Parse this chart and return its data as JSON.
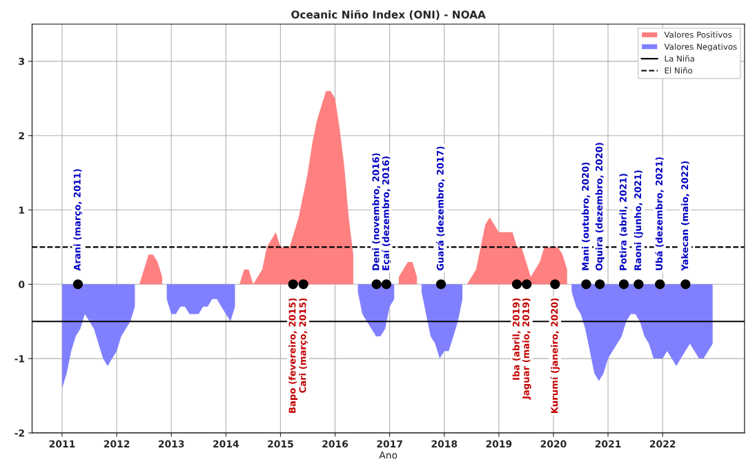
{
  "chart_data": {
    "type": "area",
    "title": "Oceanic Niño Index (ONI) - NOAA",
    "xlabel": "Ano",
    "x": [
      2011.0,
      2011.0833,
      2011.1667,
      2011.25,
      2011.3333,
      2011.4167,
      2011.5,
      2011.5833,
      2011.6667,
      2011.75,
      2011.8333,
      2011.9167,
      2012.0,
      2012.0833,
      2012.1667,
      2012.25,
      2012.3333,
      2012.4167,
      2012.5,
      2012.5833,
      2012.6667,
      2012.75,
      2012.8333,
      2012.9167,
      2013.0,
      2013.0833,
      2013.1667,
      2013.25,
      2013.3333,
      2013.4167,
      2013.5,
      2013.5833,
      2013.6667,
      2013.75,
      2013.8333,
      2013.9167,
      2014.0,
      2014.0833,
      2014.1667,
      2014.25,
      2014.3333,
      2014.4167,
      2014.5,
      2014.5833,
      2014.6667,
      2014.75,
      2014.8333,
      2014.9167,
      2015.0,
      2015.0833,
      2015.1667,
      2015.25,
      2015.3333,
      2015.4167,
      2015.5,
      2015.5833,
      2015.6667,
      2015.75,
      2015.8333,
      2015.9167,
      2016.0,
      2016.0833,
      2016.1667,
      2016.25,
      2016.3333,
      2016.4167,
      2016.5,
      2016.5833,
      2016.6667,
      2016.75,
      2016.8333,
      2016.9167,
      2017.0,
      2017.0833,
      2017.1667,
      2017.25,
      2017.3333,
      2017.4167,
      2017.5,
      2017.5833,
      2017.6667,
      2017.75,
      2017.8333,
      2017.9167,
      2018.0,
      2018.0833,
      2018.1667,
      2018.25,
      2018.3333,
      2018.4167,
      2018.5,
      2018.5833,
      2018.6667,
      2018.75,
      2018.8333,
      2018.9167,
      2019.0,
      2019.0833,
      2019.1667,
      2019.25,
      2019.3333,
      2019.4167,
      2019.5,
      2019.5833,
      2019.6667,
      2019.75,
      2019.8333,
      2019.9167,
      2020.0,
      2020.0833,
      2020.1667,
      2020.25,
      2020.3333,
      2020.4167,
      2020.5,
      2020.5833,
      2020.6667,
      2020.75,
      2020.8333,
      2020.9167,
      2021.0,
      2021.0833,
      2021.1667,
      2021.25,
      2021.3333,
      2021.4167,
      2021.5,
      2021.5833,
      2021.6667,
      2021.75,
      2021.8333,
      2021.9167,
      2022.0,
      2022.0833,
      2022.1667,
      2022.25,
      2022.3333,
      2022.4167,
      2022.5,
      2022.5833,
      2022.6667,
      2022.75,
      2022.8333,
      2022.9167
    ],
    "series": [
      {
        "name": "Valores Positivos",
        "color": "#ff8080",
        "values": [
          null,
          null,
          null,
          null,
          null,
          null,
          null,
          null,
          null,
          null,
          null,
          null,
          null,
          null,
          null,
          null,
          null,
          0.0,
          0.2,
          0.4,
          0.4,
          0.3,
          0.1,
          null,
          null,
          null,
          null,
          null,
          null,
          null,
          null,
          null,
          null,
          null,
          null,
          null,
          null,
          null,
          null,
          0.0,
          0.2,
          0.2,
          0.0,
          0.1,
          0.2,
          0.5,
          0.6,
          0.7,
          0.5,
          0.5,
          0.5,
          0.7,
          0.9,
          1.2,
          1.5,
          1.9,
          2.2,
          2.4,
          2.6,
          2.6,
          2.5,
          2.1,
          1.6,
          0.9,
          0.4,
          null,
          null,
          null,
          null,
          null,
          null,
          null,
          null,
          null,
          0.1,
          0.2,
          0.3,
          0.3,
          0.1,
          null,
          null,
          null,
          null,
          null,
          null,
          null,
          null,
          null,
          null,
          0.0,
          0.1,
          0.2,
          0.5,
          0.8,
          0.9,
          0.8,
          0.7,
          0.7,
          0.7,
          0.7,
          0.5,
          0.5,
          0.3,
          0.1,
          0.2,
          0.3,
          0.5,
          0.5,
          0.5,
          0.5,
          0.4,
          0.2,
          null,
          null,
          null,
          null,
          null,
          null,
          null,
          null,
          null,
          null,
          null,
          null,
          null,
          null,
          null,
          null,
          null,
          null,
          null,
          null,
          null,
          null,
          null,
          null,
          null,
          null,
          null,
          null,
          null,
          null,
          null,
          null
        ]
      },
      {
        "name": "Valores Negativos",
        "color": "#8080ff",
        "values": [
          -1.4,
          -1.2,
          -0.9,
          -0.7,
          -0.6,
          -0.4,
          -0.5,
          -0.6,
          -0.8,
          -1.0,
          -1.1,
          -1.0,
          -0.9,
          -0.7,
          -0.6,
          -0.5,
          -0.3,
          null,
          null,
          null,
          null,
          null,
          null,
          -0.2,
          -0.4,
          -0.4,
          -0.3,
          -0.3,
          -0.4,
          -0.4,
          -0.4,
          -0.3,
          -0.3,
          -0.2,
          -0.2,
          -0.3,
          -0.4,
          -0.5,
          -0.3,
          null,
          null,
          null,
          null,
          null,
          null,
          null,
          null,
          null,
          null,
          null,
          null,
          null,
          null,
          null,
          null,
          null,
          null,
          null,
          null,
          null,
          null,
          null,
          null,
          null,
          null,
          -0.1,
          -0.4,
          -0.5,
          -0.6,
          -0.7,
          -0.7,
          -0.6,
          -0.3,
          -0.2,
          null,
          null,
          null,
          null,
          null,
          -0.1,
          -0.4,
          -0.7,
          -0.8,
          -1.0,
          -0.9,
          -0.9,
          -0.7,
          -0.5,
          -0.2,
          null,
          null,
          null,
          null,
          null,
          null,
          null,
          null,
          null,
          null,
          null,
          null,
          null,
          null,
          null,
          null,
          null,
          null,
          null,
          null,
          null,
          null,
          null,
          -0.1,
          -0.3,
          -0.4,
          -0.6,
          -0.9,
          -1.2,
          -1.3,
          -1.2,
          -1.0,
          -0.9,
          -0.8,
          -0.7,
          -0.5,
          -0.4,
          -0.4,
          -0.5,
          -0.7,
          -0.8,
          -1.0,
          -1.0,
          -1.0,
          -0.9,
          -1.0,
          -1.1,
          -1.0,
          -0.9,
          -0.8,
          -0.9,
          -1.0,
          -1.0,
          -0.9,
          -0.8
        ]
      },
      {
        "type": "scatter",
        "color": "#000000",
        "marker": "circle",
        "x": [
          2011.29,
          2015.23,
          2015.42,
          2016.76,
          2016.94,
          2017.94,
          2019.33,
          2019.51,
          2020.03,
          2020.6,
          2020.85,
          2021.29,
          2021.56,
          2021.95,
          2022.42
        ],
        "values": [
          0,
          0,
          0,
          0,
          0,
          0,
          0,
          0,
          0,
          0,
          0,
          0,
          0,
          0,
          0
        ]
      }
    ],
    "ref_lines": [
      {
        "axis": "y",
        "value": -0.5,
        "label": "La Niña",
        "color": "#000000",
        "line_style": "solid"
      },
      {
        "axis": "y",
        "value": 0.5,
        "label": "El Niño",
        "color": "#000000",
        "line_style": "dashed"
      }
    ],
    "annotations": [
      {
        "text": "Arani (março, 2011)",
        "x": 2011.29,
        "y": 0
      },
      {
        "text": "Bapo (fevereiro, 2015)",
        "x": 2015.23,
        "y": 0
      },
      {
        "text": "Cari (março, 2015)",
        "x": 2015.42,
        "y": 0
      },
      {
        "text": "Deni (novembro, 2016)",
        "x": 2016.76,
        "y": 0
      },
      {
        "text": "Eçaí (dezembro, 2016)",
        "x": 2016.94,
        "y": 0
      },
      {
        "text": "Guará (dezembro, 2017)",
        "x": 2017.94,
        "y": 0
      },
      {
        "text": "Iba (abril, 2019)",
        "x": 2019.33,
        "y": 0
      },
      {
        "text": "Jaguar (maio, 2019)",
        "x": 2019.51,
        "y": 0
      },
      {
        "text": "Kurumí (janeiro, 2020)",
        "x": 2020.03,
        "y": 0
      },
      {
        "text": "Mani (outubro, 2020)",
        "x": 2020.6,
        "y": 0
      },
      {
        "text": "Oquira (dezembro, 2020)",
        "x": 2020.85,
        "y": 0
      },
      {
        "text": "Potira (abril, 2021)",
        "x": 2021.29,
        "y": 0
      },
      {
        "text": "Raoni (junho, 2021)",
        "x": 2021.56,
        "y": 0
      },
      {
        "text": "Ubá (dezembro, 2021)",
        "x": 2021.95,
        "y": 0
      },
      {
        "text": "Yakecan (maio, 2022)",
        "x": 2022.42,
        "y": 0
      }
    ],
    "xlim": [
      2010.45,
      2023.5
    ],
    "ylim": [
      -2,
      3.5
    ],
    "xticks": [
      2011,
      2012,
      2013,
      2014,
      2015,
      2016,
      2017,
      2018,
      2019,
      2020,
      2021,
      2022
    ],
    "yticks": [
      -2,
      -1,
      0,
      1,
      2,
      3
    ],
    "grid": true,
    "legend": "top right"
  }
}
